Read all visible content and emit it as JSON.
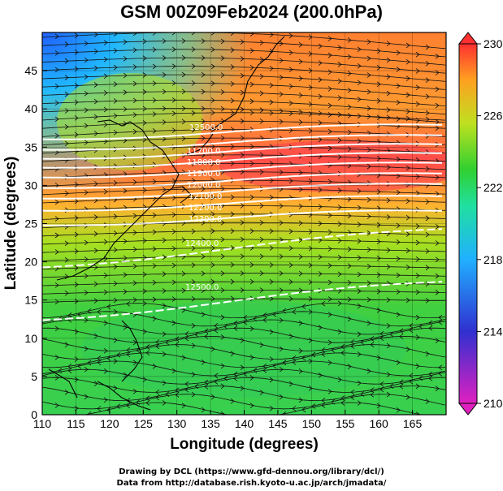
{
  "title": "GSM 00Z09Feb2024 (200.0hPa)",
  "x_axis": {
    "label": "Longitude (degrees)",
    "ticks": [
      "110",
      "115",
      "120",
      "125",
      "130",
      "135",
      "140",
      "145",
      "150",
      "155",
      "160",
      "165"
    ],
    "range": [
      110,
      170
    ]
  },
  "y_axis": {
    "label": "Latitude  (degrees)",
    "ticks": [
      "0",
      "5",
      "10",
      "15",
      "20",
      "25",
      "30",
      "35",
      "40",
      "45"
    ],
    "range": [
      0,
      50
    ]
  },
  "colorbar": {
    "ticks": [
      "210",
      "214",
      "218",
      "222",
      "226",
      "230"
    ],
    "range": [
      210,
      230
    ],
    "colors": [
      "#e020c0",
      "#3030d0",
      "#20b0ff",
      "#20e0a0",
      "#30d030",
      "#c0e020",
      "#ffa020",
      "#ff3030"
    ]
  },
  "contour_labels": [
    "12500.0",
    "11700.0",
    "11800.0",
    "11900.0",
    "12000.0",
    "12100.0",
    "12200.0",
    "12300.0",
    "12400.0",
    "12500.0"
  ],
  "credits": {
    "line1": "Drawing by DCL (https://www.gfd-dennou.org/library/dcl/)",
    "line2": "Data from http://database.rish.kyoto-u.ac.jp/arch/jmadata/"
  }
}
